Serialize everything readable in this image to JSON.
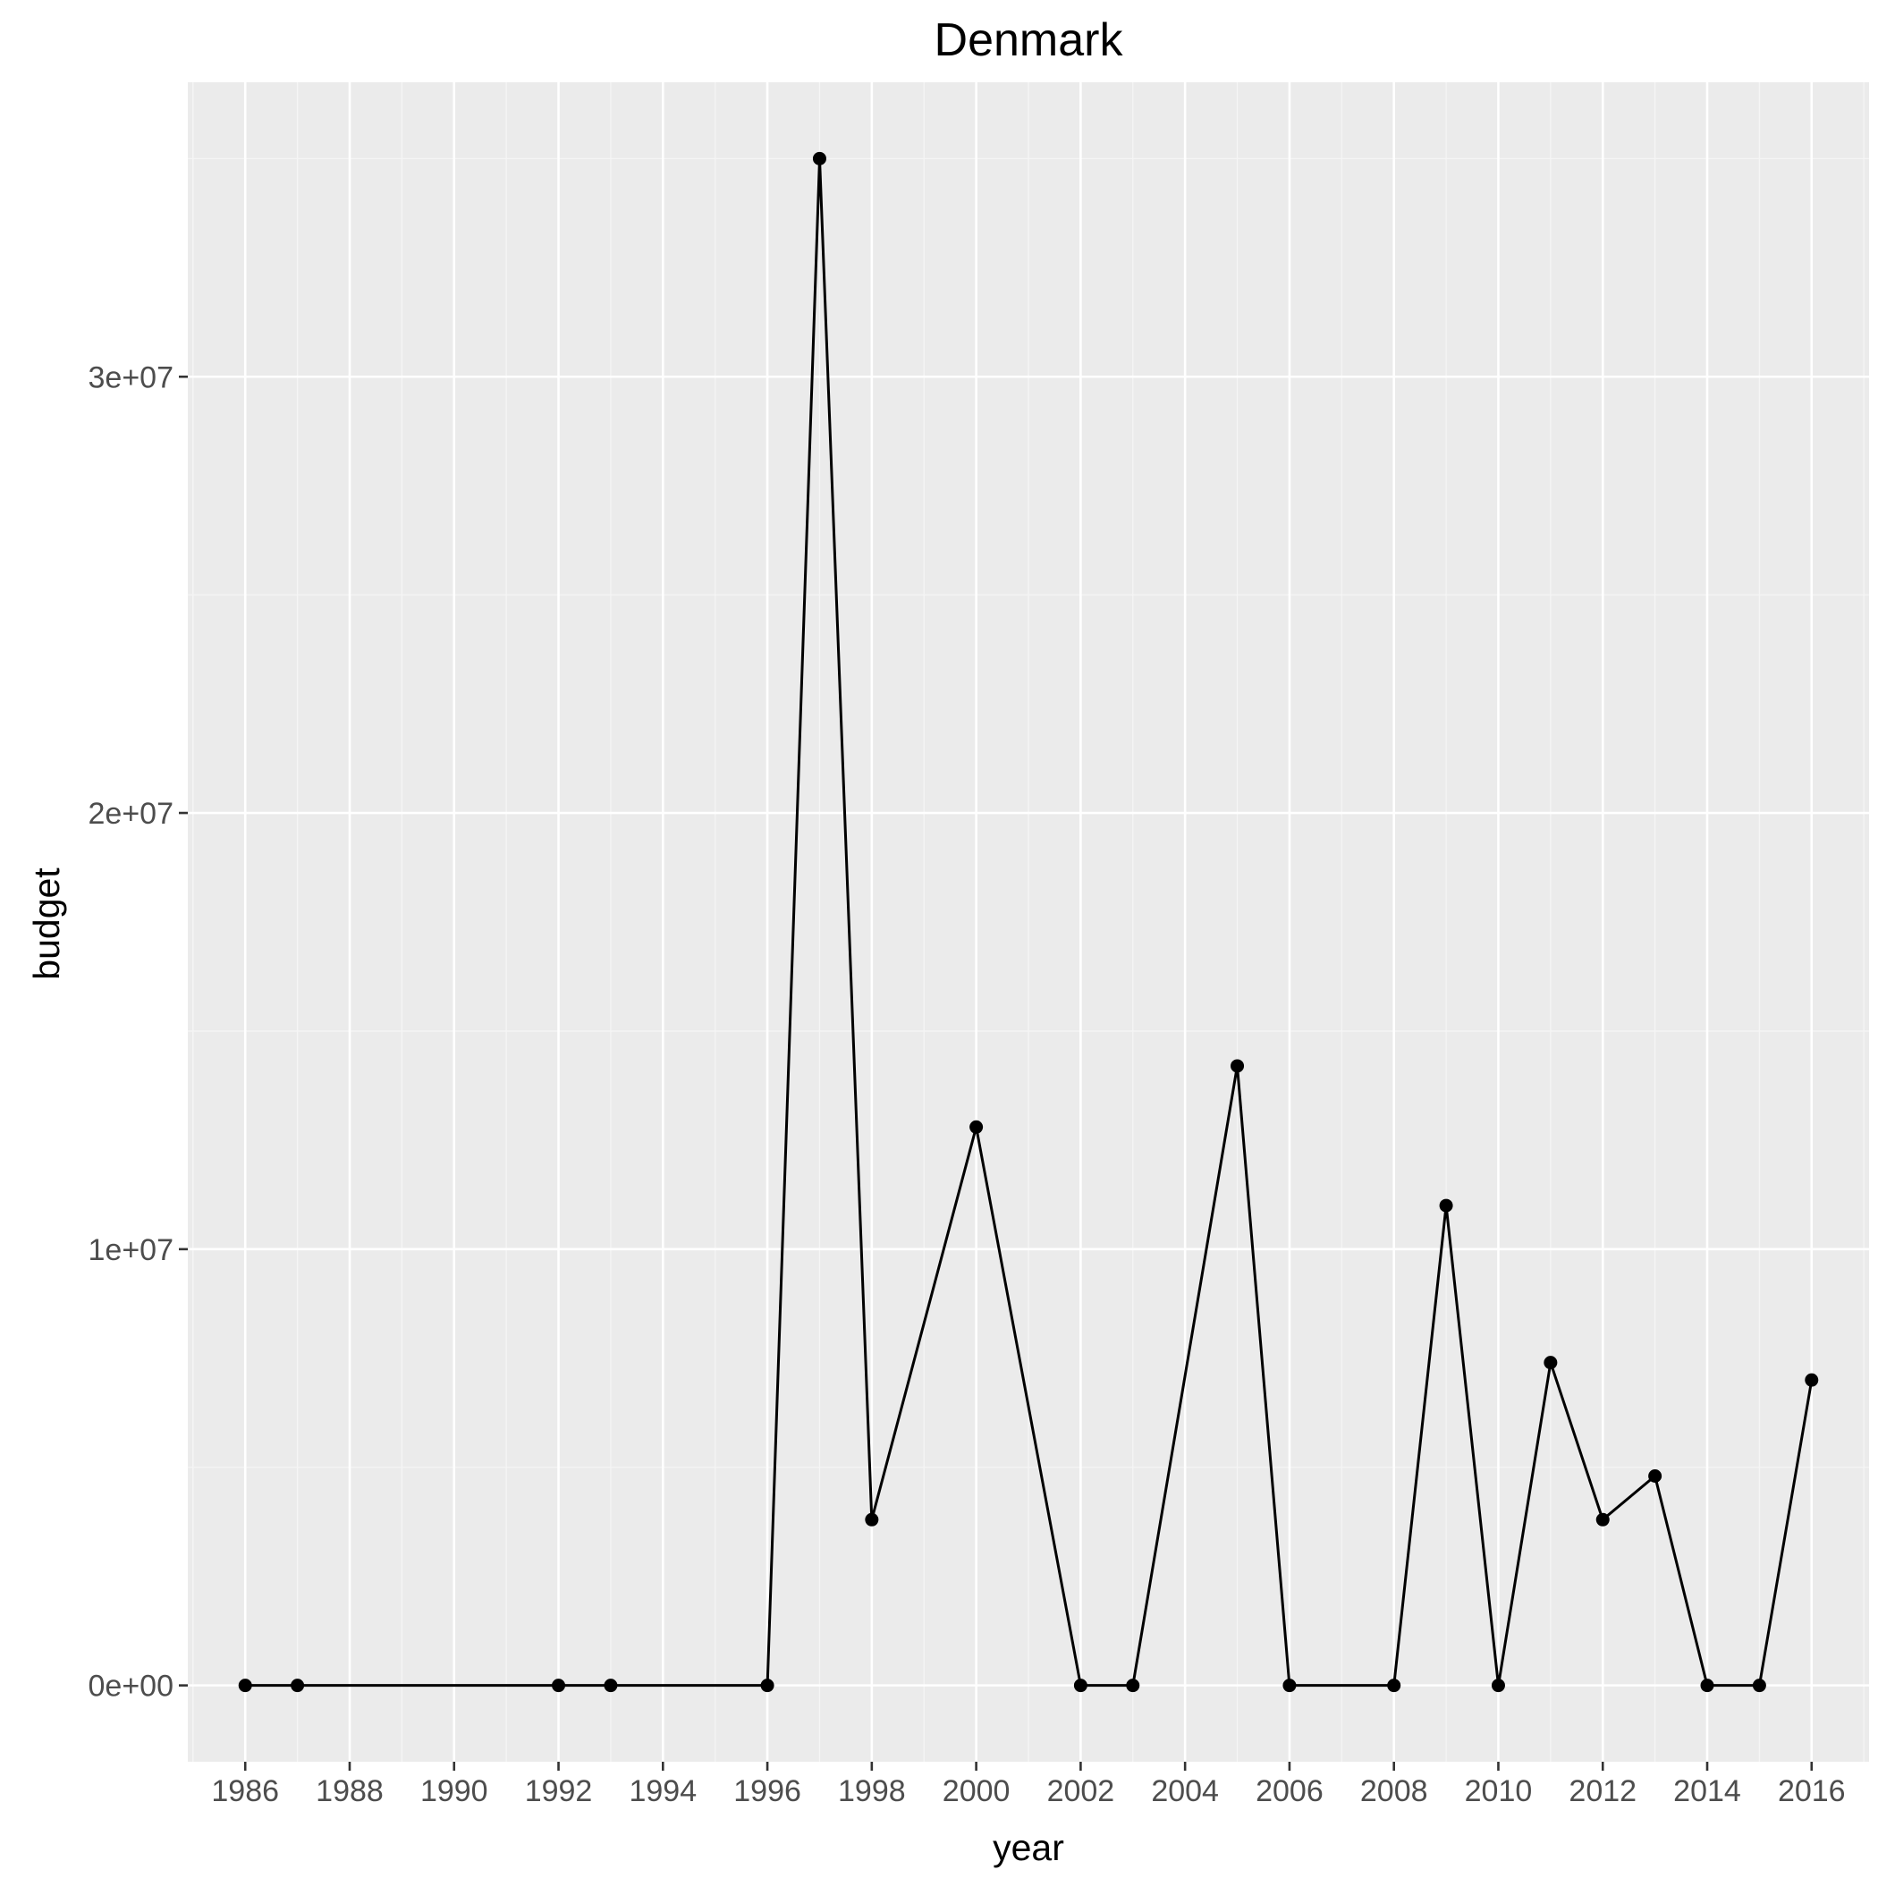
{
  "chart_data": {
    "type": "line",
    "title": "Denmark",
    "xlabel": "year",
    "ylabel": "budget",
    "x_ticks": [
      1986,
      1988,
      1990,
      1992,
      1994,
      1996,
      1998,
      2000,
      2002,
      2004,
      2006,
      2008,
      2010,
      2012,
      2014,
      2016
    ],
    "y_ticks": [
      0,
      10000000,
      20000000,
      30000000
    ],
    "y_tick_labels": [
      "0e+00",
      "1e+07",
      "2e+07",
      "3e+07"
    ],
    "xlim": [
      1984.9,
      2017.1
    ],
    "ylim": [
      -1750000,
      36750000
    ],
    "grid": true,
    "series": [
      {
        "x": [
          1986,
          1987,
          1992,
          1993,
          1996,
          1997,
          1998,
          2000,
          2002,
          2003,
          2005,
          2006,
          2008,
          2009,
          2010,
          2011,
          2012,
          2013,
          2014,
          2015,
          2016
        ],
        "y": [
          0,
          0,
          0,
          0,
          0,
          35000000,
          3800000,
          12800000,
          0,
          0,
          14200000,
          0,
          0,
          11000000,
          0,
          7400000,
          3800000,
          4800000,
          0,
          0,
          7000000
        ]
      }
    ],
    "colors": {
      "panel": "#EBEBEB",
      "grid_major": "#FFFFFF",
      "grid_minor": "#F5F5F5",
      "line": "#000000",
      "tick": "#333333",
      "tick_label": "#4D4D4D"
    }
  }
}
